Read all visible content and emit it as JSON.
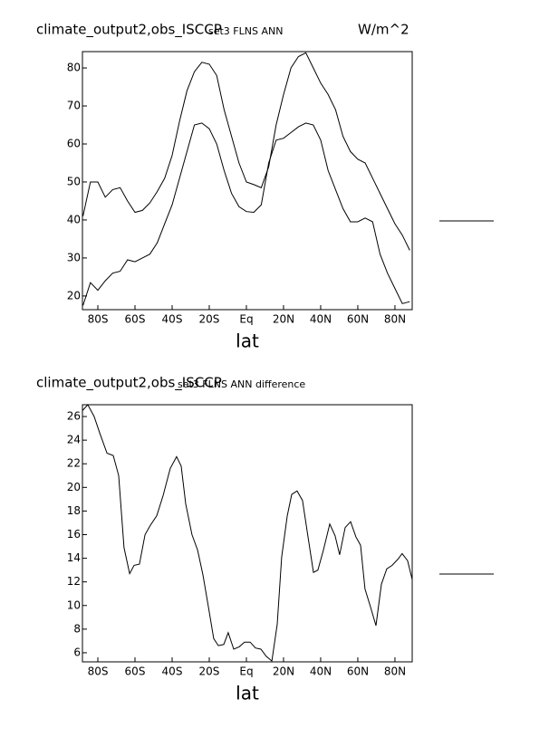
{
  "chart_data": [
    {
      "type": "line",
      "title": "climate_output2,obs_ISCCP",
      "subtitle": "set3 FLNS ANN",
      "units": "W/m^2",
      "xlabel": "lat",
      "x": [
        -88,
        -84,
        -80,
        -76,
        -72,
        -68,
        -64,
        -60,
        -56,
        -52,
        -48,
        -44,
        -40,
        -36,
        -32,
        -28,
        -24,
        -20,
        -16,
        -12,
        -8,
        -4,
        0,
        4,
        8,
        12,
        16,
        20,
        24,
        28,
        32,
        36,
        40,
        44,
        48,
        52,
        56,
        60,
        64,
        68,
        72,
        76,
        80,
        84,
        88
      ],
      "series": [
        {
          "color": "#000000",
          "values": [
            41,
            50,
            50,
            46,
            48,
            48.5,
            45,
            42,
            42.5,
            44.5,
            47.5,
            51,
            57,
            66,
            74,
            79,
            81.5,
            81,
            78,
            69,
            62,
            55,
            50,
            49.3,
            48.5,
            54,
            65,
            73,
            80,
            83,
            84,
            80,
            76,
            73,
            69,
            62,
            58,
            56,
            55,
            51,
            47,
            43,
            39,
            36,
            32
          ]
        },
        {
          "color": "#000000",
          "values": [
            17.5,
            23.5,
            21.5,
            24,
            26,
            26.5,
            29.5,
            29,
            30,
            31,
            34,
            39,
            44,
            51,
            58,
            65,
            65.5,
            64,
            60,
            53,
            47,
            43.5,
            42.2,
            42,
            44,
            55,
            61,
            61.5,
            63,
            64.5,
            65.5,
            65,
            61,
            53,
            48,
            43,
            39.5,
            39.5,
            40.5,
            39.5,
            31,
            26,
            22,
            18,
            18.5
          ]
        }
      ],
      "xlim": [
        -88.3,
        89.3
      ],
      "ylim": [
        16.4,
        84.3
      ],
      "xticks": [
        {
          "value": -80,
          "label": "80S"
        },
        {
          "value": -60,
          "label": "60S"
        },
        {
          "value": -40,
          "label": "40S"
        },
        {
          "value": -20,
          "label": "20S"
        },
        {
          "value": 0,
          "label": "Eq"
        },
        {
          "value": 20,
          "label": "20N"
        },
        {
          "value": 40,
          "label": "40N"
        },
        {
          "value": 60,
          "label": "60N"
        },
        {
          "value": 80,
          "label": "80N"
        }
      ],
      "yticks": [
        20,
        30,
        40,
        50,
        60,
        70,
        80
      ]
    },
    {
      "type": "line",
      "title": "climate_output2,obs_ISCCP",
      "subtitle": "set3 FLNS ANN difference",
      "xlabel": "lat",
      "x": [
        -88.3,
        -85.4,
        -82,
        -79,
        -75.1,
        -71.7,
        -68.8,
        -65.9,
        -62.9,
        -60.5,
        -57.6,
        -54.6,
        -51.7,
        -48.3,
        -44.9,
        -41,
        -37.6,
        -35.1,
        -32.7,
        -29.3,
        -26.3,
        -23.4,
        -20.5,
        -17.6,
        -15.1,
        -12.2,
        -9.8,
        -6.8,
        -3.9,
        -1,
        2,
        4.9,
        7.8,
        10.7,
        13.7,
        16.6,
        19,
        22,
        24.4,
        27.3,
        30.2,
        33.7,
        36.1,
        38.5,
        41.5,
        44.9,
        47.8,
        50.2,
        53.2,
        56.1,
        59,
        61.5,
        63.9,
        66.8,
        69.8,
        72.7,
        75.6,
        78.5,
        81.5,
        83.9,
        86.8,
        89.3
      ],
      "series": [
        {
          "color": "#000000",
          "values": [
            26.5,
            27,
            26,
            24.6,
            22.9,
            22.7,
            21,
            14.9,
            12.7,
            13.4,
            13.5,
            16,
            16.8,
            17.6,
            19.3,
            21.6,
            22.6,
            21.8,
            18.6,
            16,
            14.7,
            12.6,
            9.9,
            7.2,
            6.6,
            6.7,
            7.7,
            6.3,
            6.5,
            6.9,
            6.9,
            6.4,
            6.3,
            5.7,
            5.3,
            8.4,
            14.1,
            17.6,
            19.4,
            19.7,
            18.9,
            15.3,
            12.8,
            13,
            14.7,
            16.9,
            15.9,
            14.3,
            16.6,
            17.1,
            15.8,
            15.1,
            11.4,
            9.9,
            8.3,
            11.8,
            13.1,
            13.4,
            13.9,
            14.4,
            13.8,
            12.2
          ]
        }
      ],
      "xlim": [
        -88.3,
        89.3
      ],
      "ylim": [
        5.23,
        27
      ],
      "xticks": [
        {
          "value": -80,
          "label": "80S"
        },
        {
          "value": -60,
          "label": "60S"
        },
        {
          "value": -40,
          "label": "40S"
        },
        {
          "value": -20,
          "label": "20S"
        },
        {
          "value": 0,
          "label": "Eq"
        },
        {
          "value": 20,
          "label": "20N"
        },
        {
          "value": 40,
          "label": "40N"
        },
        {
          "value": 60,
          "label": "60N"
        },
        {
          "value": 80,
          "label": "80N"
        }
      ],
      "yticks": [
        6,
        8,
        10,
        12,
        14,
        16,
        18,
        20,
        22,
        24,
        26
      ]
    }
  ]
}
